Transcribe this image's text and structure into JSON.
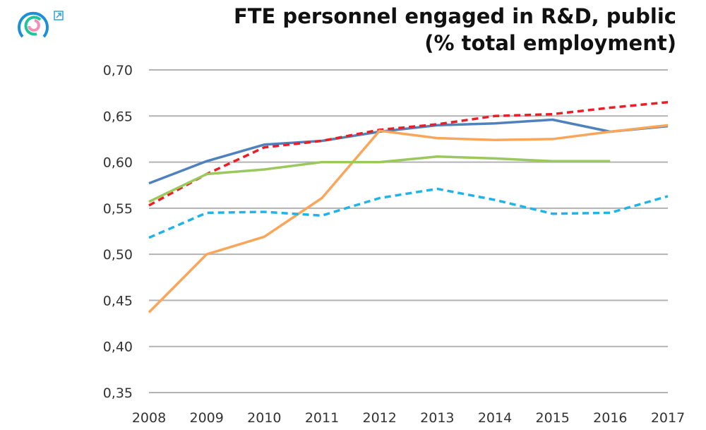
{
  "chart_data": {
    "type": "line",
    "title": "FTE personnel engaged in R&D, public",
    "subtitle": "(% total employment)",
    "xlabel": "",
    "ylabel": "",
    "ylim": [
      0.35,
      0.7
    ],
    "yticks": [
      "0,35",
      "0,40",
      "0,45",
      "0,50",
      "0,55",
      "0,60",
      "0,65",
      "0,70"
    ],
    "grid": true,
    "legend": "none",
    "x": [
      "2008",
      "2009",
      "2010",
      "2011",
      "2012",
      "2013",
      "2014",
      "2015",
      "2016",
      "2017"
    ],
    "series": [
      {
        "name": "blue",
        "color": "#4f81bd",
        "dash": false,
        "values": [
          0.577,
          0.601,
          0.619,
          0.623,
          0.633,
          0.64,
          0.642,
          0.646,
          0.633,
          0.639
        ]
      },
      {
        "name": "red-dashed",
        "color": "#ee1c25",
        "dash": true,
        "values": [
          0.553,
          0.587,
          0.616,
          0.623,
          0.635,
          0.641,
          0.65,
          0.652,
          0.659,
          0.665
        ]
      },
      {
        "name": "orange",
        "color": "#f9a65a",
        "dash": false,
        "values": [
          0.437,
          0.5,
          0.519,
          0.561,
          0.634,
          0.626,
          0.624,
          0.625,
          0.633,
          0.64
        ]
      },
      {
        "name": "green",
        "color": "#9bc85a",
        "dash": false,
        "values": [
          0.557,
          0.587,
          0.592,
          0.6,
          0.6,
          0.606,
          0.604,
          0.601,
          0.601,
          null
        ]
      },
      {
        "name": "cyan-dashed",
        "color": "#1eb4ea",
        "dash": true,
        "values": [
          0.518,
          0.545,
          0.546,
          0.542,
          0.561,
          0.571,
          0.559,
          0.544,
          0.545,
          0.563
        ]
      }
    ]
  },
  "icons": {
    "logo": "circular-logo-icon",
    "external": "external-link-icon"
  }
}
